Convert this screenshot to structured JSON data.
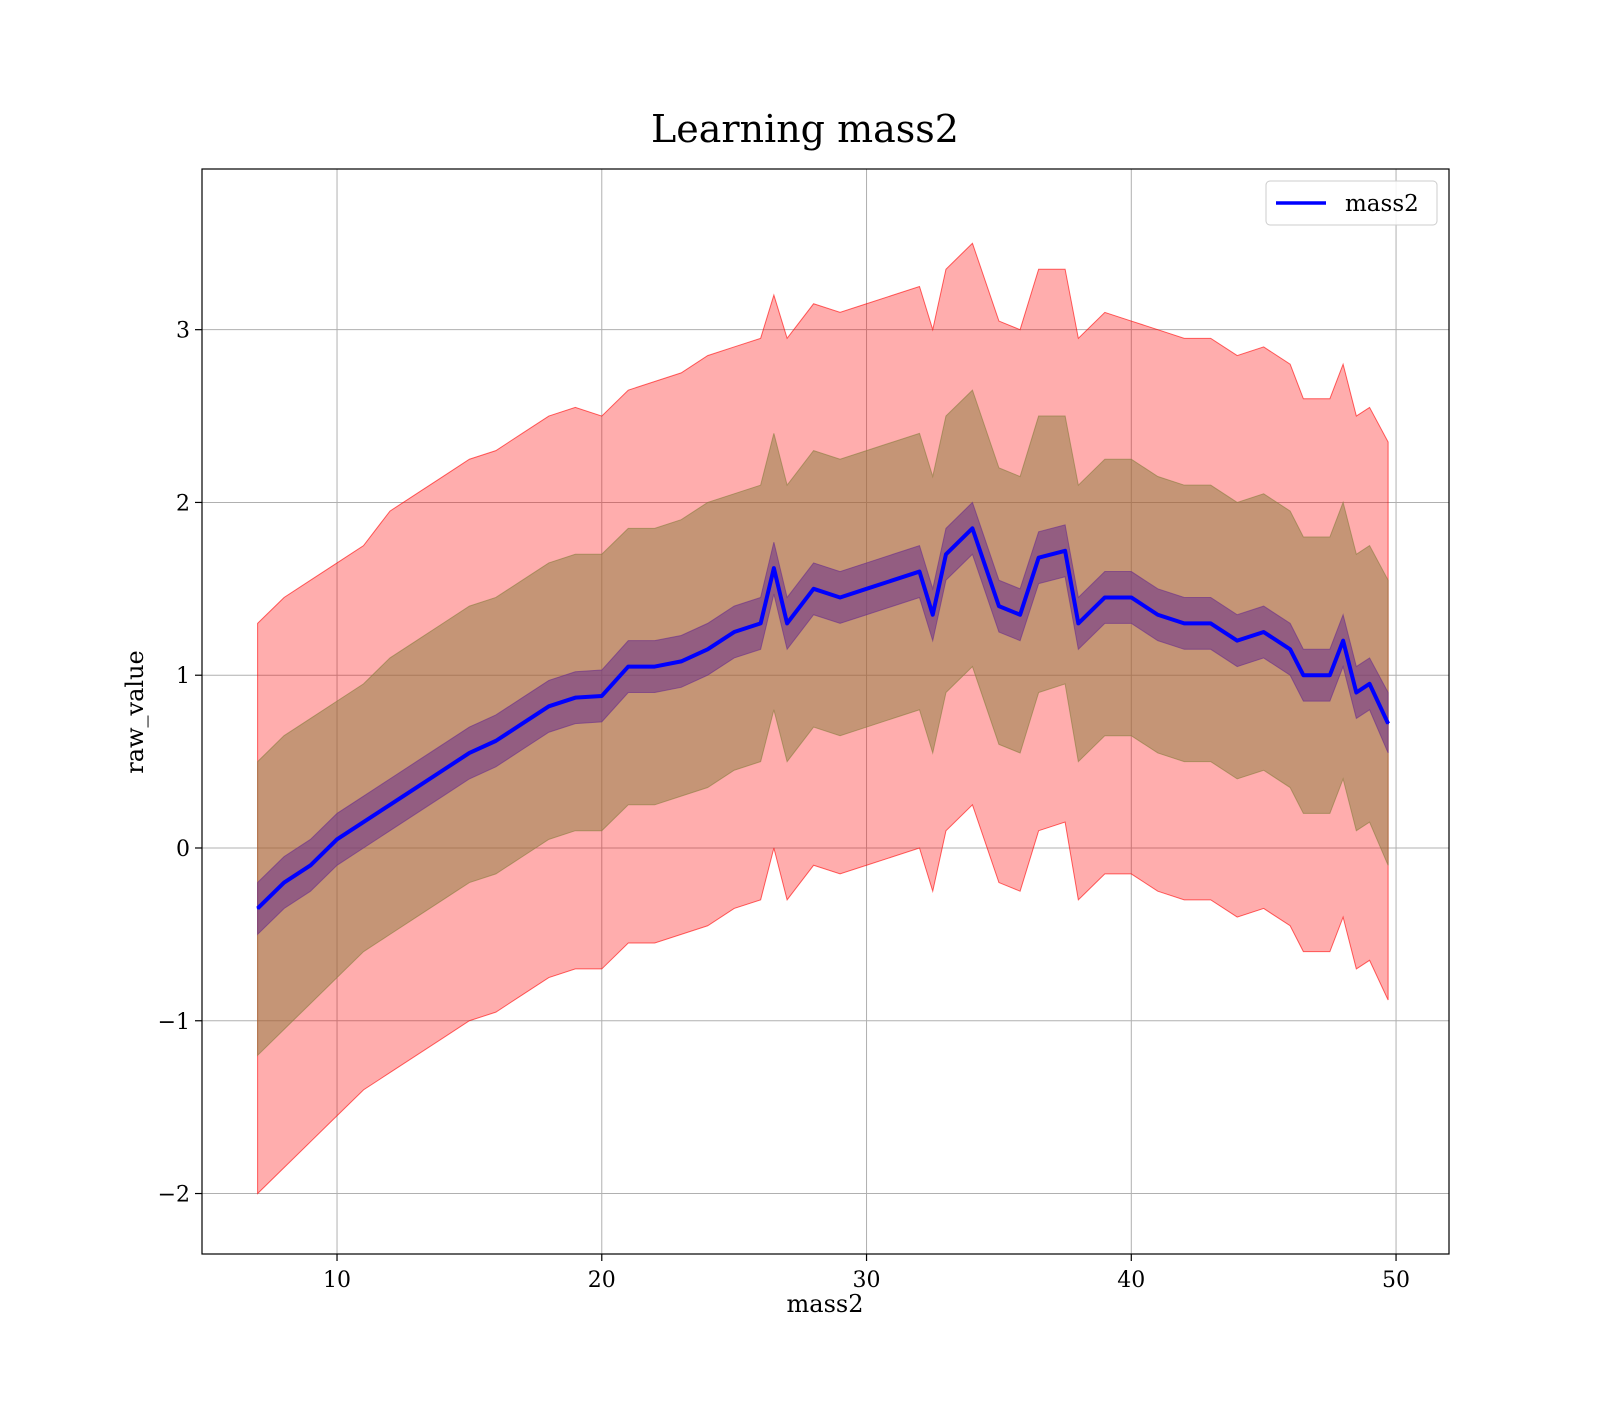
{
  "chart_data": {
    "type": "line",
    "title": "Learning mass2",
    "xlabel": "mass2",
    "ylabel": "raw_value",
    "xlim": [
      4.9,
      52.0
    ],
    "ylim": [
      -2.35,
      3.93
    ],
    "xticks": [
      10,
      20,
      30,
      40,
      50
    ],
    "yticks": [
      -2,
      -1,
      0,
      1,
      2,
      3
    ],
    "xtick_labels": [
      "10",
      "20",
      "30",
      "40",
      "50"
    ],
    "ytick_labels": [
      "−2",
      "−1",
      "0",
      "1",
      "2",
      "3"
    ],
    "grid": true,
    "legend_position": "top-right",
    "x": [
      7.0,
      8.0,
      9.0,
      10.0,
      11.0,
      12.0,
      13.0,
      14.0,
      15.0,
      16.0,
      17.0,
      18.0,
      19.0,
      20.0,
      21.0,
      22.0,
      23.0,
      24.0,
      25.0,
      26.0,
      26.5,
      27.0,
      28.0,
      29.0,
      30.0,
      31.0,
      32.0,
      32.5,
      33.0,
      34.0,
      35.0,
      35.8,
      36.5,
      37.5,
      38.0,
      39.0,
      40.0,
      41.0,
      42.0,
      43.0,
      44.0,
      45.0,
      46.0,
      46.5,
      47.5,
      48.0,
      48.5,
      49.0,
      49.7
    ],
    "series": [
      {
        "name": "mass2",
        "color": "#0000ff",
        "role": "mean",
        "values": [
          -0.35,
          -0.2,
          -0.1,
          0.05,
          0.15,
          0.25,
          0.35,
          0.45,
          0.55,
          0.62,
          0.72,
          0.82,
          0.87,
          0.88,
          1.05,
          1.05,
          1.08,
          1.15,
          1.25,
          1.3,
          1.62,
          1.3,
          1.5,
          1.45,
          1.5,
          1.55,
          1.6,
          1.35,
          1.7,
          1.85,
          1.4,
          1.35,
          1.68,
          1.72,
          1.3,
          1.45,
          1.45,
          1.35,
          1.3,
          1.3,
          1.2,
          1.25,
          1.15,
          1.0,
          1.0,
          1.2,
          0.9,
          0.95,
          0.72
        ]
      }
    ],
    "bands": [
      {
        "role": "outer",
        "color": "#ff0000",
        "opacity": 0.32,
        "lower": [
          -2.0,
          -1.85,
          -1.7,
          -1.55,
          -1.4,
          -1.3,
          -1.2,
          -1.1,
          -1.0,
          -0.95,
          -0.85,
          -0.75,
          -0.7,
          -0.7,
          -0.55,
          -0.55,
          -0.5,
          -0.45,
          -0.35,
          -0.3,
          0.0,
          -0.3,
          -0.1,
          -0.15,
          -0.1,
          -0.05,
          0.0,
          -0.25,
          0.1,
          0.25,
          -0.2,
          -0.25,
          0.1,
          0.15,
          -0.3,
          -0.15,
          -0.15,
          -0.25,
          -0.3,
          -0.3,
          -0.4,
          -0.35,
          -0.45,
          -0.6,
          -0.6,
          -0.4,
          -0.7,
          -0.65,
          -0.88
        ],
        "upper": [
          1.3,
          1.45,
          1.55,
          1.65,
          1.75,
          1.95,
          2.05,
          2.15,
          2.25,
          2.3,
          2.4,
          2.5,
          2.55,
          2.5,
          2.65,
          2.7,
          2.75,
          2.85,
          2.9,
          2.95,
          3.2,
          2.95,
          3.15,
          3.1,
          3.15,
          3.2,
          3.25,
          3.0,
          3.35,
          3.5,
          3.05,
          3.0,
          3.35,
          3.35,
          2.95,
          3.1,
          3.05,
          3.0,
          2.95,
          2.95,
          2.85,
          2.9,
          2.8,
          2.6,
          2.6,
          2.8,
          2.5,
          2.55,
          2.35
        ]
      },
      {
        "role": "inner",
        "color": "#8b7d3f",
        "opacity": 0.5,
        "lower": [
          -1.2,
          -1.05,
          -0.9,
          -0.75,
          -0.6,
          -0.5,
          -0.4,
          -0.3,
          -0.2,
          -0.15,
          -0.05,
          0.05,
          0.1,
          0.1,
          0.25,
          0.25,
          0.3,
          0.35,
          0.45,
          0.5,
          0.8,
          0.5,
          0.7,
          0.65,
          0.7,
          0.75,
          0.8,
          0.55,
          0.9,
          1.05,
          0.6,
          0.55,
          0.9,
          0.95,
          0.5,
          0.65,
          0.65,
          0.55,
          0.5,
          0.5,
          0.4,
          0.45,
          0.35,
          0.2,
          0.2,
          0.4,
          0.1,
          0.15,
          -0.1
        ],
        "upper": [
          0.5,
          0.65,
          0.75,
          0.85,
          0.95,
          1.1,
          1.2,
          1.3,
          1.4,
          1.45,
          1.55,
          1.65,
          1.7,
          1.7,
          1.85,
          1.85,
          1.9,
          2.0,
          2.05,
          2.1,
          2.4,
          2.1,
          2.3,
          2.25,
          2.3,
          2.35,
          2.4,
          2.15,
          2.5,
          2.65,
          2.2,
          2.15,
          2.5,
          2.5,
          2.1,
          2.25,
          2.25,
          2.15,
          2.1,
          2.1,
          2.0,
          2.05,
          1.95,
          1.8,
          1.8,
          2.0,
          1.7,
          1.75,
          1.55
        ]
      },
      {
        "role": "mean-band",
        "color": "#6a2f8a",
        "opacity": 0.55,
        "lower": [
          -0.5,
          -0.35,
          -0.25,
          -0.1,
          0.0,
          0.1,
          0.2,
          0.3,
          0.4,
          0.47,
          0.57,
          0.67,
          0.72,
          0.73,
          0.9,
          0.9,
          0.93,
          1.0,
          1.1,
          1.15,
          1.47,
          1.15,
          1.35,
          1.3,
          1.35,
          1.4,
          1.45,
          1.2,
          1.55,
          1.7,
          1.25,
          1.2,
          1.53,
          1.57,
          1.15,
          1.3,
          1.3,
          1.2,
          1.15,
          1.15,
          1.05,
          1.1,
          1.0,
          0.85,
          0.85,
          1.05,
          0.75,
          0.8,
          0.55
        ],
        "upper": [
          -0.2,
          -0.05,
          0.05,
          0.2,
          0.3,
          0.4,
          0.5,
          0.6,
          0.7,
          0.77,
          0.87,
          0.97,
          1.02,
          1.03,
          1.2,
          1.2,
          1.23,
          1.3,
          1.4,
          1.45,
          1.77,
          1.45,
          1.65,
          1.6,
          1.65,
          1.7,
          1.75,
          1.5,
          1.85,
          2.0,
          1.55,
          1.5,
          1.83,
          1.87,
          1.45,
          1.6,
          1.6,
          1.5,
          1.45,
          1.45,
          1.35,
          1.4,
          1.3,
          1.15,
          1.15,
          1.35,
          1.05,
          1.1,
          0.9
        ]
      }
    ]
  }
}
